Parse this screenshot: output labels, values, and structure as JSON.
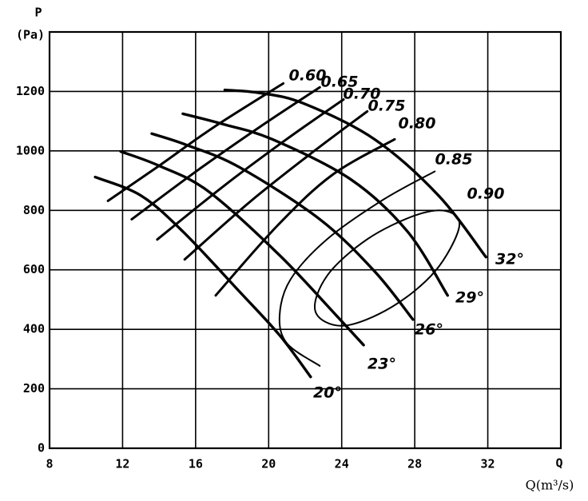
{
  "chart_data": {
    "type": "line",
    "y_label": "P",
    "y_unit": "(Pa)",
    "x_label": "Q",
    "x_unit": "Q(m³/s)",
    "xlim": [
      8,
      36
    ],
    "ylim": [
      0,
      1400
    ],
    "xticks": [
      8,
      12,
      16,
      20,
      24,
      28,
      32
    ],
    "yticks": [
      0,
      200,
      400,
      600,
      800,
      1000,
      1200
    ],
    "grid": true,
    "color": "#000000",
    "series": [
      {
        "name": "20°",
        "x": [
          10.5,
          13,
          15.3,
          18.4,
          20.6,
          22.3
        ],
        "values": [
          912,
          850,
          729,
          527,
          380,
          240
        ]
      },
      {
        "name": "23°",
        "x": [
          11.9,
          14,
          16.7,
          20.6,
          23.7,
          25.2
        ],
        "values": [
          998,
          950,
          864,
          649,
          447,
          347
        ]
      },
      {
        "name": "26°",
        "x": [
          13.6,
          15.5,
          18.4,
          22.8,
          25.8,
          27.9
        ],
        "values": [
          1058,
          1020,
          945,
          770,
          595,
          433
        ]
      },
      {
        "name": "29°",
        "x": [
          15.3,
          17.5,
          20.2,
          24.5,
          27.6,
          29.8
        ],
        "values": [
          1125,
          1090,
          1039,
          904,
          729,
          514
        ]
      },
      {
        "name": "32°",
        "x": [
          17.6,
          19.5,
          21.9,
          25.8,
          29.3,
          31.9
        ],
        "values": [
          1205,
          1195,
          1160,
          1039,
          850,
          643
        ]
      },
      {
        "name": "0.60",
        "x": [
          11.2,
          14,
          17,
          20.8
        ],
        "values": [
          832,
          950,
          1080,
          1227
        ]
      },
      {
        "name": "0.65",
        "x": [
          12.5,
          16,
          19.5,
          22.8
        ],
        "values": [
          770,
          930,
          1080,
          1214
        ]
      },
      {
        "name": "0.70",
        "x": [
          13.9,
          17.5,
          21,
          24.1
        ],
        "values": [
          702,
          880,
          1040,
          1173
        ]
      },
      {
        "name": "0.75",
        "x": [
          15.4,
          19,
          22.5,
          25.4
        ],
        "values": [
          635,
          830,
          1000,
          1133
        ]
      },
      {
        "name": "0.80",
        "x": [
          17.1,
          20.5,
          23.5,
          26.9
        ],
        "values": [
          514,
          750,
          920,
          1039
        ]
      },
      {
        "name": "0.85",
        "x": [
          22.8,
          21.0,
          20.6,
          21.2,
          23.2,
          26.3,
          29.1
        ],
        "values": [
          277,
          353,
          447,
          568,
          703,
          837,
          931
        ]
      },
      {
        "name": "0.90",
        "closed": true,
        "x": [
          22.56,
          24.09,
          26.71,
          29.11,
          30.43,
          29.77,
          28.02,
          25.4,
          23.21
        ],
        "values": [
          460,
          412,
          474,
          595,
          743,
          797,
          783,
          703,
          581
        ]
      }
    ]
  }
}
